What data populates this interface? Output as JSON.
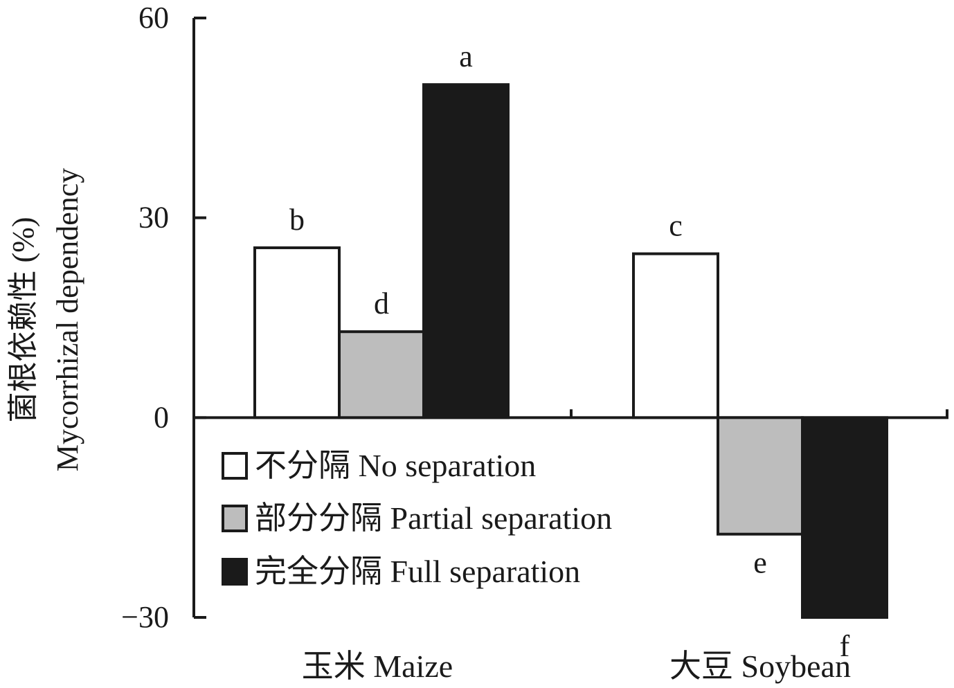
{
  "chart_data": {
    "type": "bar",
    "categories": [
      "玉米 Maize",
      "大豆 Soybean"
    ],
    "series": [
      {
        "name": "不分隔 No separation",
        "values": [
          25.5,
          24.6
        ],
        "color": "#ffffff"
      },
      {
        "name": "部分分隔 Partial separation",
        "values": [
          12.9,
          -17.5
        ],
        "color": "#bdbdbd"
      },
      {
        "name": "完全分隔 Full separation",
        "values": [
          50.0,
          -30.0
        ],
        "color": "#1a1a1a"
      }
    ],
    "significance_labels": [
      [
        "b",
        "d",
        "a"
      ],
      [
        "c",
        "e",
        "f"
      ]
    ],
    "ylabel_cn": "菌根依赖性 (%)",
    "ylabel_en": "Mycorrhizal dependency",
    "ylim": [
      -30,
      60
    ],
    "yticks": [
      -30,
      0,
      30,
      60
    ],
    "ytick_labels": [
      "−30",
      "0",
      "30",
      "60"
    ],
    "grid": false,
    "legend_position": "lower-left"
  }
}
